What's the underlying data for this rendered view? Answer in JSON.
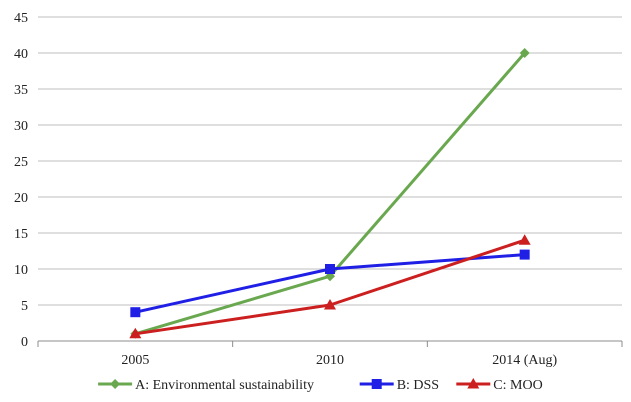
{
  "chart_data": {
    "type": "line",
    "title": "",
    "xlabel": "",
    "ylabel": "",
    "categories": [
      "2005",
      "2010",
      "2014 (Aug)"
    ],
    "ylim": [
      0,
      45
    ],
    "yticks": [
      0,
      5,
      10,
      15,
      20,
      25,
      30,
      35,
      40,
      45
    ],
    "grid": "horizontal",
    "legend_position": "bottom",
    "series": [
      {
        "name": "A: Environmental sustainability",
        "values": [
          1,
          9,
          40
        ],
        "color": "#6aa84f",
        "marker": "diamond"
      },
      {
        "name": "B: DSS",
        "values": [
          4,
          10,
          12
        ],
        "color": "#1f1fe6",
        "marker": "square"
      },
      {
        "name": "C: MOO",
        "values": [
          1,
          5,
          14
        ],
        "color": "#cc1f1f",
        "marker": "triangle"
      }
    ]
  }
}
